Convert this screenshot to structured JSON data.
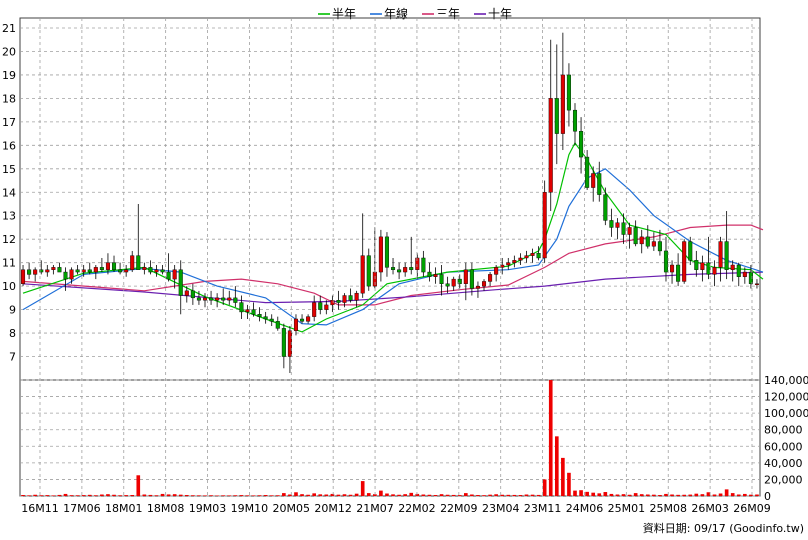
{
  "chart_data": [
    {
      "type": "candlestick",
      "title": "",
      "legend": [
        {
          "label": "半年",
          "color": "#00c000"
        },
        {
          "label": "年線",
          "color": "#1f6fd8"
        },
        {
          "label": "三年",
          "color": "#d0306a"
        },
        {
          "label": "十年",
          "color": "#6a1fb0"
        }
      ],
      "legend_position": "top-center",
      "ylim": [
        6,
        21
      ],
      "yticks": [
        "7",
        "8",
        "9",
        "10",
        "11",
        "12",
        "13",
        "14",
        "15",
        "16",
        "17",
        "18",
        "19",
        "20",
        "21"
      ],
      "xticks": [
        "16M11",
        "17M06",
        "18M01",
        "18M08",
        "19M03",
        "19M10",
        "20M05",
        "20M12",
        "21M07",
        "22M02",
        "22M09",
        "23M04",
        "23M11",
        "24M06",
        "25M01",
        "25M08",
        "26M03",
        "26M09"
      ],
      "grid": true,
      "candles": [
        [
          10.1,
          10.9,
          10.0,
          10.7
        ],
        [
          10.7,
          11.0,
          10.3,
          10.5
        ],
        [
          10.5,
          10.8,
          10.2,
          10.7
        ],
        [
          10.7,
          11.1,
          10.5,
          10.6
        ],
        [
          10.6,
          10.9,
          10.4,
          10.7
        ],
        [
          10.7,
          10.9,
          10.5,
          10.8
        ],
        [
          10.8,
          11.0,
          10.6,
          10.6
        ],
        [
          10.6,
          10.8,
          9.8,
          10.3
        ],
        [
          10.3,
          10.8,
          10.1,
          10.7
        ],
        [
          10.7,
          10.9,
          10.5,
          10.6
        ],
        [
          10.6,
          10.9,
          10.4,
          10.7
        ],
        [
          10.7,
          11.0,
          10.5,
          10.6
        ],
        [
          10.6,
          10.9,
          10.3,
          10.8
        ],
        [
          10.8,
          11.2,
          10.6,
          10.7
        ],
        [
          10.7,
          11.4,
          10.5,
          11.0
        ],
        [
          11.0,
          11.3,
          10.6,
          10.7
        ],
        [
          10.7,
          11.0,
          10.5,
          10.6
        ],
        [
          10.6,
          10.9,
          10.4,
          10.7
        ],
        [
          10.7,
          11.5,
          10.6,
          11.3
        ],
        [
          11.3,
          13.5,
          10.8,
          10.7
        ],
        [
          10.7,
          11.0,
          10.5,
          10.8
        ],
        [
          10.8,
          11.1,
          10.5,
          10.6
        ],
        [
          10.6,
          10.9,
          10.4,
          10.7
        ],
        [
          10.7,
          10.9,
          10.5,
          10.6
        ],
        [
          10.6,
          11.4,
          10.2,
          10.3
        ],
        [
          10.3,
          10.9,
          9.9,
          10.7
        ],
        [
          10.7,
          11.1,
          8.8,
          9.6
        ],
        [
          9.6,
          10.0,
          9.3,
          9.8
        ],
        [
          9.8,
          10.1,
          9.2,
          9.5
        ],
        [
          9.5,
          9.8,
          9.2,
          9.4
        ],
        [
          9.4,
          9.7,
          9.1,
          9.5
        ],
        [
          9.5,
          9.8,
          9.2,
          9.4
        ],
        [
          9.4,
          9.7,
          9.1,
          9.5
        ],
        [
          9.5,
          9.9,
          9.2,
          9.4
        ],
        [
          9.4,
          9.8,
          9.2,
          9.5
        ],
        [
          9.5,
          10.0,
          9.1,
          9.3
        ],
        [
          9.3,
          9.6,
          8.6,
          8.9
        ],
        [
          8.9,
          9.2,
          8.6,
          9.0
        ],
        [
          9.0,
          9.3,
          8.7,
          8.8
        ],
        [
          8.8,
          9.1,
          8.5,
          8.7
        ],
        [
          8.7,
          8.9,
          8.4,
          8.6
        ],
        [
          8.6,
          8.8,
          8.3,
          8.5
        ],
        [
          8.5,
          8.7,
          8.1,
          8.2
        ],
        [
          8.2,
          8.4,
          6.5,
          7.0
        ],
        [
          7.0,
          8.3,
          6.3,
          8.1
        ],
        [
          8.1,
          8.8,
          7.9,
          8.6
        ],
        [
          8.6,
          8.8,
          8.4,
          8.5
        ],
        [
          8.5,
          8.8,
          8.4,
          8.7
        ],
        [
          8.7,
          9.6,
          8.5,
          9.3
        ],
        [
          9.3,
          9.6,
          8.8,
          9.0
        ],
        [
          9.0,
          9.4,
          8.8,
          9.2
        ],
        [
          9.2,
          9.6,
          8.9,
          9.4
        ],
        [
          9.4,
          9.8,
          9.0,
          9.3
        ],
        [
          9.3,
          9.7,
          9.1,
          9.6
        ],
        [
          9.6,
          9.9,
          9.3,
          9.4
        ],
        [
          9.4,
          9.8,
          9.1,
          9.7
        ],
        [
          9.7,
          13.1,
          9.5,
          11.3
        ],
        [
          11.3,
          11.6,
          9.8,
          10.0
        ],
        [
          10.0,
          12.5,
          9.9,
          10.6
        ],
        [
          10.6,
          12.4,
          10.2,
          12.1
        ],
        [
          12.1,
          12.3,
          10.4,
          10.8
        ],
        [
          10.8,
          11.2,
          10.5,
          10.7
        ],
        [
          10.7,
          11.0,
          10.3,
          10.6
        ],
        [
          10.6,
          11.0,
          10.4,
          10.8
        ],
        [
          10.8,
          12.1,
          10.5,
          10.7
        ],
        [
          10.7,
          11.4,
          10.3,
          11.2
        ],
        [
          11.2,
          11.5,
          10.4,
          10.6
        ],
        [
          10.6,
          11.0,
          10.2,
          10.4
        ],
        [
          10.4,
          10.8,
          10.1,
          10.5
        ],
        [
          10.5,
          10.9,
          9.6,
          10.1
        ],
        [
          10.1,
          10.4,
          9.7,
          10.0
        ],
        [
          10.0,
          10.4,
          9.8,
          10.3
        ],
        [
          10.3,
          10.5,
          9.9,
          10.1
        ],
        [
          10.1,
          11.0,
          9.4,
          10.7
        ],
        [
          10.7,
          11.0,
          9.6,
          9.9
        ],
        [
          9.9,
          10.2,
          9.5,
          10.0
        ],
        [
          10.0,
          10.3,
          9.8,
          10.2
        ],
        [
          10.2,
          10.6,
          10.0,
          10.5
        ],
        [
          10.5,
          10.9,
          10.2,
          10.8
        ],
        [
          10.8,
          11.2,
          10.5,
          10.9
        ],
        [
          10.9,
          11.2,
          10.7,
          11.0
        ],
        [
          11.0,
          11.3,
          10.8,
          11.1
        ],
        [
          11.1,
          11.4,
          10.9,
          11.2
        ],
        [
          11.2,
          11.5,
          11.0,
          11.3
        ],
        [
          11.3,
          11.6,
          11.0,
          11.4
        ],
        [
          11.4,
          11.7,
          11.1,
          11.2
        ],
        [
          11.2,
          14.5,
          11.0,
          14.0
        ],
        [
          14.0,
          20.5,
          13.2,
          18.0
        ],
        [
          18.0,
          20.3,
          15.2,
          16.5
        ],
        [
          16.5,
          20.8,
          15.8,
          19.0
        ],
        [
          19.0,
          19.5,
          16.8,
          17.5
        ],
        [
          17.5,
          17.8,
          16.0,
          16.6
        ],
        [
          16.6,
          17.2,
          14.8,
          15.5
        ],
        [
          15.5,
          15.8,
          14.1,
          14.2
        ],
        [
          14.2,
          15.1,
          13.6,
          14.8
        ],
        [
          14.8,
          15.3,
          13.6,
          13.9
        ],
        [
          13.9,
          14.2,
          12.6,
          12.8
        ],
        [
          12.8,
          13.3,
          12.1,
          12.5
        ],
        [
          12.5,
          12.9,
          12.0,
          12.7
        ],
        [
          12.7,
          13.1,
          11.8,
          12.2
        ],
        [
          12.2,
          12.7,
          11.6,
          12.5
        ],
        [
          12.5,
          12.8,
          11.7,
          11.8
        ],
        [
          11.8,
          12.4,
          11.4,
          12.1
        ],
        [
          12.1,
          12.6,
          11.6,
          11.7
        ],
        [
          11.7,
          12.3,
          11.5,
          11.9
        ],
        [
          11.9,
          12.4,
          11.3,
          11.5
        ],
        [
          11.5,
          12.1,
          10.2,
          10.6
        ],
        [
          10.6,
          11.1,
          10.1,
          10.9
        ],
        [
          10.9,
          11.4,
          10.0,
          10.2
        ],
        [
          10.2,
          12.0,
          10.1,
          11.9
        ],
        [
          11.9,
          12.1,
          10.9,
          11.1
        ],
        [
          11.1,
          11.5,
          10.4,
          10.7
        ],
        [
          10.7,
          11.3,
          10.2,
          11.0
        ],
        [
          11.0,
          12.1,
          10.3,
          10.5
        ],
        [
          10.5,
          11.1,
          10.0,
          10.8
        ],
        [
          10.8,
          12.1,
          10.2,
          11.9
        ],
        [
          11.9,
          13.2,
          10.3,
          10.7
        ],
        [
          10.7,
          11.1,
          10.2,
          10.9
        ],
        [
          10.9,
          11.0,
          10.0,
          10.4
        ],
        [
          10.4,
          10.8,
          10.1,
          10.6
        ],
        [
          10.6,
          10.9,
          9.9,
          10.1
        ],
        [
          10.1,
          10.3,
          9.9,
          10.1
        ]
      ],
      "ma_half_year": [
        [
          0,
          9.7
        ],
        [
          10,
          10.55
        ],
        [
          20,
          10.8
        ],
        [
          30,
          9.55
        ],
        [
          40,
          8.6
        ],
        [
          46,
          8.05
        ],
        [
          50,
          8.6
        ],
        [
          56,
          9.2
        ],
        [
          60,
          10.1
        ],
        [
          70,
          10.6
        ],
        [
          80,
          10.85
        ],
        [
          85,
          11.5
        ],
        [
          86,
          12.0
        ],
        [
          88,
          13.5
        ],
        [
          90,
          15.6
        ],
        [
          91,
          16.1
        ],
        [
          93,
          15.4
        ],
        [
          96,
          14.0
        ],
        [
          100,
          12.6
        ],
        [
          106,
          12.2
        ],
        [
          110,
          11.1
        ],
        [
          114,
          10.8
        ],
        [
          120,
          10.7
        ],
        [
          122,
          10.3
        ]
      ],
      "ma_year": [
        [
          0,
          9.0
        ],
        [
          10,
          10.5
        ],
        [
          20,
          10.75
        ],
        [
          26,
          10.6
        ],
        [
          32,
          10.0
        ],
        [
          40,
          9.5
        ],
        [
          46,
          8.4
        ],
        [
          50,
          8.35
        ],
        [
          56,
          9.0
        ],
        [
          62,
          10.1
        ],
        [
          70,
          10.6
        ],
        [
          80,
          10.7
        ],
        [
          85,
          10.9
        ],
        [
          88,
          12.0
        ],
        [
          90,
          13.4
        ],
        [
          93,
          14.6
        ],
        [
          96,
          15.0
        ],
        [
          100,
          14.1
        ],
        [
          104,
          13.0
        ],
        [
          110,
          11.9
        ],
        [
          116,
          11.1
        ],
        [
          122,
          10.6
        ]
      ],
      "ma_three_year": [
        [
          0,
          10.2
        ],
        [
          20,
          9.8
        ],
        [
          30,
          10.2
        ],
        [
          36,
          10.3
        ],
        [
          42,
          10.1
        ],
        [
          48,
          9.7
        ],
        [
          52,
          9.2
        ],
        [
          58,
          9.2
        ],
        [
          64,
          9.6
        ],
        [
          72,
          9.85
        ],
        [
          80,
          10.05
        ],
        [
          86,
          10.8
        ],
        [
          90,
          11.4
        ],
        [
          96,
          11.8
        ],
        [
          104,
          12.1
        ],
        [
          110,
          12.5
        ],
        [
          116,
          12.6
        ],
        [
          120,
          12.6
        ],
        [
          122,
          12.4
        ]
      ],
      "ma_ten_year": [
        [
          0,
          10.1
        ],
        [
          20,
          9.75
        ],
        [
          40,
          9.3
        ],
        [
          52,
          9.35
        ],
        [
          64,
          9.55
        ],
        [
          78,
          9.85
        ],
        [
          86,
          10.0
        ],
        [
          96,
          10.3
        ],
        [
          110,
          10.5
        ],
        [
          122,
          10.6
        ]
      ]
    },
    {
      "type": "bar",
      "title": "",
      "ylim": [
        0,
        140000
      ],
      "yticks": [
        "0",
        "20,000",
        "40,000",
        "60,000",
        "80,000",
        "100,000",
        "120,000",
        "140,000"
      ],
      "grid": true,
      "values": [
        1200,
        800,
        1500,
        900,
        1100,
        700,
        1300,
        2500,
        1000,
        900,
        1100,
        1400,
        900,
        1800,
        2200,
        1500,
        900,
        1100,
        1200,
        25000,
        1800,
        1300,
        900,
        2500,
        1900,
        2200,
        1600,
        1200,
        900,
        800,
        700,
        900,
        600,
        800,
        700,
        900,
        1100,
        800,
        700,
        900,
        1200,
        800,
        900,
        3500,
        1800,
        4500,
        2200,
        1500,
        3200,
        2000,
        1800,
        2500,
        1600,
        2100,
        1500,
        2800,
        18000,
        3500,
        2200,
        6500,
        3000,
        2000,
        1500,
        2200,
        3800,
        2500,
        1800,
        1500,
        1200,
        2200,
        1500,
        1300,
        1100,
        3500,
        1800,
        1200,
        1000,
        1600,
        2100,
        1500,
        1400,
        1300,
        1200,
        1800,
        1600,
        1300,
        20000,
        140000,
        72000,
        46000,
        28000,
        6500,
        7000,
        5000,
        4000,
        3200,
        4800,
        2500,
        1800,
        2200,
        1500,
        3500,
        2200,
        1800,
        1600,
        1200,
        2500,
        1800,
        1400,
        1500,
        1700,
        2800,
        2200,
        4500,
        1800,
        3000,
        8000,
        3500,
        1800,
        2500,
        1600,
        1800
      ]
    }
  ],
  "source": "資料日期: 09/17  (Goodinfo.tw)",
  "colors": {
    "up": "#e00000",
    "down": "#00a000",
    "volume": "#ee0000",
    "grid": "#a0a0a0",
    "axis": "#404040"
  }
}
